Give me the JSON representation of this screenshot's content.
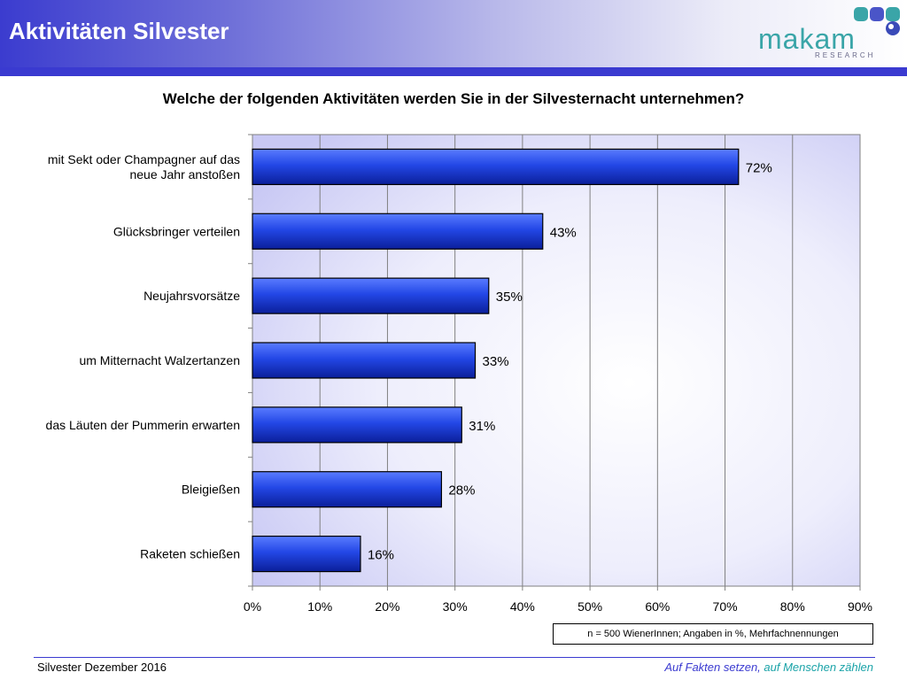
{
  "header": {
    "title": "Aktivitäten Silvester"
  },
  "logo": {
    "word": "makam",
    "sub": "RESEARCH"
  },
  "colors": {
    "bar": "#2347e6",
    "band": "#3a3ad0",
    "accent": "#1aa3a8"
  },
  "chart_data": {
    "type": "bar",
    "orientation": "horizontal",
    "title": "Welche der folgenden Aktivitäten werden Sie in der Silvesternacht unternehmen?",
    "categories": [
      [
        "mit Sekt oder Champagner auf das",
        "neue Jahr anstoßen"
      ],
      [
        "Glücksbringer verteilen"
      ],
      [
        "Neujahrsvorsätze"
      ],
      [
        "um Mitternacht Walzertanzen"
      ],
      [
        "das Läuten der Pummerin erwarten"
      ],
      [
        "Bleigießen"
      ],
      [
        "Raketen schießen"
      ]
    ],
    "values": [
      72,
      43,
      35,
      33,
      31,
      28,
      16
    ],
    "data_labels": [
      "72%",
      "43%",
      "35%",
      "33%",
      "31%",
      "28%",
      "16%"
    ],
    "xlim": [
      0,
      90
    ],
    "xticks": [
      "0%",
      "10%",
      "20%",
      "30%",
      "40%",
      "50%",
      "60%",
      "70%",
      "80%",
      "90%"
    ],
    "grid": true
  },
  "note": "n = 500 WienerInnen; Angaben in %, Mehrfachnennungen",
  "footer": {
    "left": "Silvester Dezember 2016",
    "right_a": "Auf Fakten setzen,",
    "right_b": " auf Menschen zählen"
  }
}
